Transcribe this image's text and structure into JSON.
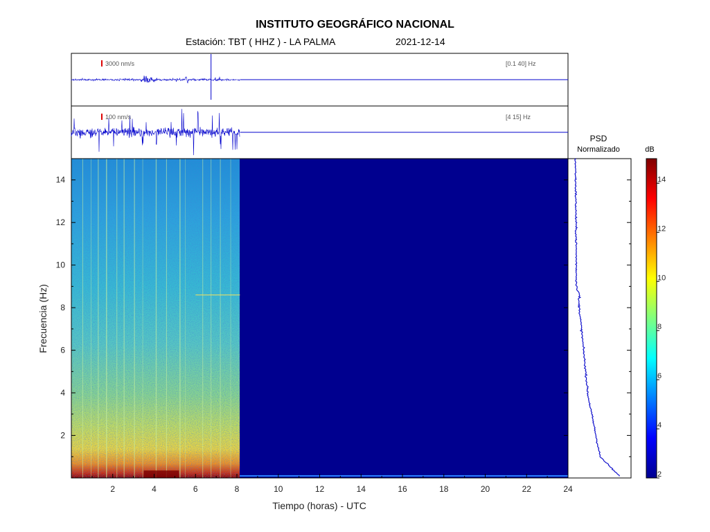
{
  "header": {
    "title": "INSTITUTO GEOGRÁFICO NACIONAL",
    "station": "Estación:  TBT ( HHZ ) - LA PALMA",
    "date": "2021-12-14"
  },
  "chart_data": [
    {
      "type": "line",
      "panel": "seismogram",
      "scale_label": "3000 nm/s",
      "band_label": "[0.1 40] Hz",
      "x_range_hours": [
        0,
        24
      ],
      "data_end_hour": 8.15
    },
    {
      "type": "line",
      "panel": "seismogram",
      "scale_label": "100 nm/s",
      "band_label": "[4 15] Hz",
      "x_range_hours": [
        0,
        24
      ],
      "data_end_hour": 8.15
    },
    {
      "type": "heatmap",
      "panel": "spectrogram",
      "xlabel": "Tiempo (horas) - UTC",
      "ylabel": "Frecuencia  (Hz)",
      "xlim": [
        0,
        24
      ],
      "ylim": [
        0,
        15
      ],
      "x_ticks": [
        "2",
        "4",
        "6",
        "8",
        "10",
        "12",
        "14",
        "16",
        "18",
        "20",
        "22",
        "24"
      ],
      "y_ticks": [
        "2",
        "4",
        "6",
        "8",
        "10",
        "12",
        "14"
      ],
      "data_end_hour": 8.15
    },
    {
      "type": "line",
      "panel": "psd",
      "title": "PSD",
      "subtitle": "Normalizado"
    },
    {
      "type": "heatmap",
      "panel": "colorbar",
      "label": "dB",
      "range": [
        2,
        15
      ],
      "ticks": [
        "2",
        "4",
        "6",
        "8",
        "10",
        "12",
        "14"
      ]
    }
  ],
  "colors": {
    "trace": "#0000cc",
    "empty": "#00008f",
    "scale_bar": "#dd0000",
    "axis": "#000000"
  }
}
